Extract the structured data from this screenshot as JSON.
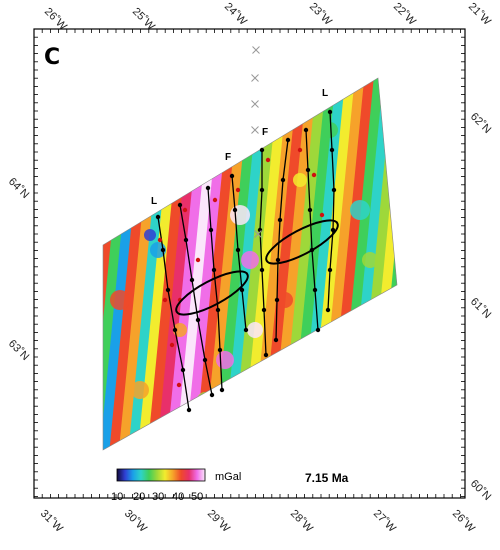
{
  "panel": {
    "letter": "C"
  },
  "age_label": "7.15 Ma",
  "colorbar": {
    "unit": "mGal",
    "ticks": [
      "10",
      "20",
      "30",
      "40",
      "50"
    ],
    "colors": [
      "#120a3a",
      "#2f3fd4",
      "#1aa0e8",
      "#2ed3c8",
      "#3fcf5a",
      "#9ed83a",
      "#f2ec2e",
      "#f6a22a",
      "#ef4a2a",
      "#e8306a",
      "#f06ee8",
      "#fbe6fb"
    ]
  },
  "graticule": {
    "top": [
      "26˚W",
      "25˚W",
      "24˚W",
      "23˚W",
      "22˚W",
      "21˚W"
    ],
    "bottom": [
      "31˚W",
      "30˚W",
      "29˚W",
      "28˚W",
      "27˚W",
      "26˚W"
    ],
    "left": [
      "64˚N",
      "63˚N"
    ],
    "right": [
      "62˚N",
      "61˚N",
      "60˚N"
    ]
  },
  "ridge_labels": [
    {
      "name": "label-l-west",
      "text": "L"
    },
    {
      "name": "label-l-east",
      "text": "L"
    },
    {
      "name": "label-f-west",
      "text": "F"
    },
    {
      "name": "label-f-east",
      "text": "F"
    }
  ]
}
